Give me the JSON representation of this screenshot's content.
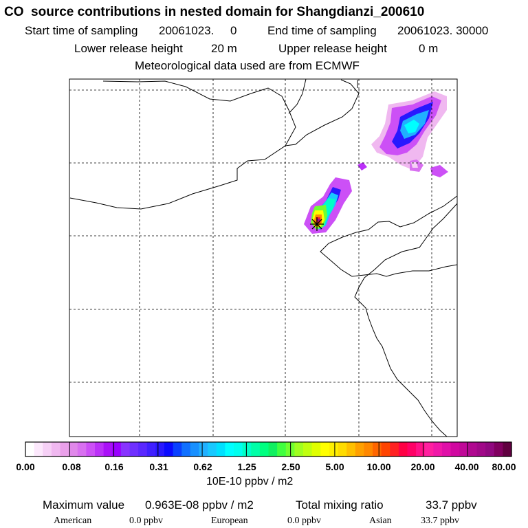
{
  "header": {
    "title": "CO  source contributions in nested domain for Shangdianzi_200610",
    "start_label": "Start time of sampling",
    "start_value": "20061023.     0",
    "end_label": "End time of sampling",
    "end_value": "20061023. 30000",
    "lower_label": "Lower release height",
    "lower_value": "20 m",
    "upper_label": "Upper release height",
    "upper_value": "0 m",
    "met": "Meteorological data used are from ECMWF"
  },
  "chart_data": {
    "type": "heatmap",
    "colorbar": {
      "ticks": [
        "0.00",
        "0.08",
        "0.16",
        "0.31",
        "0.62",
        "1.25",
        "2.50",
        "5.00",
        "10.00",
        "20.00",
        "40.00",
        "80.00"
      ],
      "units": "10E-10 ppbv / m2",
      "colors": [
        "#ffffff",
        "#fce8fc",
        "#f6d0f6",
        "#f0b8f0",
        "#eaa0ea",
        "#e088ea",
        "#d870f0",
        "#cc50f6",
        "#bb30f8",
        "#aa10f8",
        "#9a00ff",
        "#8833ff",
        "#6f30ff",
        "#5a28ff",
        "#4020ff",
        "#2818ff",
        "#0a0aff",
        "#0a40ff",
        "#1070ff",
        "#1890ff",
        "#20b0ff",
        "#18c8ff",
        "#00e0ff",
        "#00ffff",
        "#00ffee",
        "#00ffc8",
        "#00ffa8",
        "#00ff80",
        "#10f060",
        "#40ff40",
        "#70ff30",
        "#a0ff20",
        "#c0ff10",
        "#e0ff00",
        "#ffff00",
        "#fff000",
        "#ffdc00",
        "#ffc000",
        "#ffa000",
        "#ff8800",
        "#ff6600",
        "#ff4400",
        "#ff2222",
        "#ff0044",
        "#ff0066",
        "#ff1088",
        "#ff20a0",
        "#f018a8",
        "#e010a8",
        "#d008a0",
        "#c00898",
        "#b00890",
        "#a00888",
        "#900880",
        "#800060",
        "#600040"
      ]
    },
    "grid_lon_lines": 4,
    "grid_lat_lines": 5,
    "receptor_marker": "star",
    "plumes": [
      {
        "name": "near-receptor plume",
        "max_level": "10.00"
      },
      {
        "name": "north-east plume",
        "max_level": "0.62"
      }
    ]
  },
  "stats": {
    "max_label": "Maximum value",
    "max_value": "0.963E-08 ppbv / m2",
    "total_label": "Total mixing ratio",
    "total_value": "33.7 ppbv",
    "american_label": "American",
    "american_value": "0.0 ppbv",
    "european_label": "European",
    "european_value": "0.0 ppbv",
    "asian_label": "Asian",
    "asian_value": "33.7 ppbv"
  }
}
